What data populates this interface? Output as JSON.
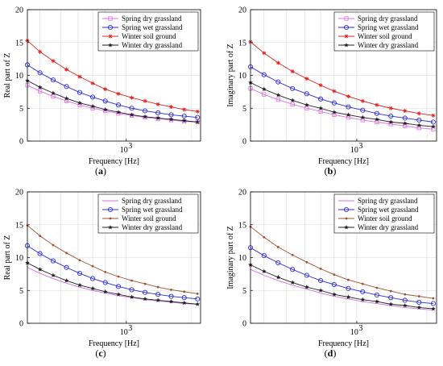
{
  "figure": {
    "captions": [
      "(a)",
      "(b)",
      "(c)",
      "(d)"
    ],
    "caption_letters": [
      "a",
      "b",
      "c",
      "d"
    ]
  },
  "chart_data": [
    {
      "type": "line",
      "panel": "(a)",
      "xlabel": "Frequency [Hz]",
      "ylabel": "Real part of Z",
      "xscale": "log",
      "xlim": [
        350,
        2200
      ],
      "ylim": [
        0,
        20
      ],
      "yticks": [
        0,
        5,
        10,
        15,
        20
      ],
      "xticks": [
        {
          "value": 1000,
          "label": "10",
          "exponent": "3"
        }
      ],
      "grid": true,
      "legend_position": "top-right",
      "x": [
        350,
        400,
        460,
        530,
        610,
        700,
        800,
        920,
        1060,
        1220,
        1400,
        1610,
        1850,
        2130
      ],
      "series": [
        {
          "name": "Spring dry grassland",
          "color": "#e070e0",
          "marker": "square",
          "values": [
            8.5,
            7.6,
            6.8,
            6.1,
            5.5,
            5.0,
            4.6,
            4.2,
            3.9,
            3.6,
            3.4,
            3.2,
            3.0,
            2.9
          ]
        },
        {
          "name": "Spring wet grassland",
          "color": "#2a2ae0",
          "marker": "circle",
          "values": [
            11.6,
            10.4,
            9.3,
            8.3,
            7.4,
            6.7,
            6.1,
            5.5,
            5.0,
            4.6,
            4.3,
            4.0,
            3.8,
            3.6
          ]
        },
        {
          "name": "Winter soil ground",
          "color": "#e02020",
          "marker": "asterisk",
          "values": [
            15.3,
            13.6,
            12.2,
            10.9,
            9.8,
            8.8,
            7.9,
            7.2,
            6.6,
            6.1,
            5.6,
            5.2,
            4.8,
            4.5
          ]
        },
        {
          "name": "Winter dry grassland",
          "color": "#202020",
          "marker": "star",
          "values": [
            9.2,
            8.2,
            7.3,
            6.5,
            5.8,
            5.3,
            4.8,
            4.4,
            4.0,
            3.7,
            3.5,
            3.3,
            3.1,
            2.9
          ]
        }
      ]
    },
    {
      "type": "line",
      "panel": "(b)",
      "xlabel": "Frequency [Hz]",
      "ylabel": "Imaginary part of Z",
      "xscale": "log",
      "xlim": [
        350,
        2200
      ],
      "ylim": [
        0,
        20
      ],
      "yticks": [
        0,
        5,
        10,
        15,
        20
      ],
      "xticks": [
        {
          "value": 1000,
          "label": "10",
          "exponent": "3"
        }
      ],
      "grid": true,
      "legend_position": "top-right",
      "x": [
        350,
        400,
        460,
        530,
        610,
        700,
        800,
        920,
        1060,
        1220,
        1400,
        1610,
        1850,
        2130
      ],
      "series": [
        {
          "name": "Spring dry grassland",
          "color": "#e070e0",
          "marker": "square",
          "values": [
            8.0,
            7.1,
            6.3,
            5.6,
            5.0,
            4.5,
            4.0,
            3.6,
            3.2,
            2.9,
            2.6,
            2.3,
            2.0,
            1.8
          ]
        },
        {
          "name": "Spring wet grassland",
          "color": "#2a2ae0",
          "marker": "circle",
          "values": [
            11.3,
            10.1,
            9.0,
            8.0,
            7.2,
            6.4,
            5.8,
            5.2,
            4.7,
            4.2,
            3.8,
            3.5,
            3.2,
            2.9
          ]
        },
        {
          "name": "Winter soil ground",
          "color": "#e02020",
          "marker": "asterisk",
          "values": [
            15.1,
            13.4,
            11.9,
            10.6,
            9.5,
            8.5,
            7.6,
            6.8,
            6.1,
            5.5,
            5.0,
            4.6,
            4.2,
            3.9
          ]
        },
        {
          "name": "Winter dry grassland",
          "color": "#202020",
          "marker": "star",
          "values": [
            8.9,
            7.9,
            7.0,
            6.2,
            5.5,
            5.0,
            4.4,
            4.0,
            3.6,
            3.3,
            2.9,
            2.7,
            2.4,
            2.2
          ]
        }
      ]
    },
    {
      "type": "line",
      "panel": "(c)",
      "xlabel": "Frequency [Hz]",
      "ylabel": "Real part of Z",
      "xscale": "log",
      "xlim": [
        350,
        2200
      ],
      "ylim": [
        0,
        20
      ],
      "yticks": [
        0,
        5,
        10,
        15,
        20
      ],
      "xticks": [
        {
          "value": 1000,
          "label": "10",
          "exponent": "3"
        }
      ],
      "grid": true,
      "legend_position": "top-right",
      "x": [
        350,
        400,
        460,
        530,
        610,
        700,
        800,
        920,
        1060,
        1220,
        1400,
        1610,
        1850,
        2130
      ],
      "series": [
        {
          "name": "Spring dry grassland",
          "color": "#d070e0",
          "marker": "none",
          "values": [
            8.5,
            7.6,
            6.8,
            6.1,
            5.5,
            5.0,
            4.6,
            4.2,
            3.9,
            3.6,
            3.4,
            3.2,
            3.0,
            2.9
          ]
        },
        {
          "name": "Spring wet grassland",
          "color": "#2a2ae0",
          "marker": "circle",
          "values": [
            11.8,
            10.6,
            9.5,
            8.5,
            7.6,
            6.8,
            6.2,
            5.6,
            5.1,
            4.7,
            4.4,
            4.1,
            3.9,
            3.7
          ]
        },
        {
          "name": "Winter soil ground",
          "color": "#a0522d",
          "marker": "dot",
          "values": [
            14.9,
            13.3,
            11.9,
            10.7,
            9.6,
            8.7,
            7.8,
            7.1,
            6.5,
            6.0,
            5.5,
            5.1,
            4.8,
            4.5
          ]
        },
        {
          "name": "Winter dry grassland",
          "color": "#202020",
          "marker": "star",
          "values": [
            9.2,
            8.2,
            7.3,
            6.5,
            5.8,
            5.3,
            4.8,
            4.4,
            4.0,
            3.7,
            3.5,
            3.3,
            3.1,
            2.9
          ]
        }
      ]
    },
    {
      "type": "line",
      "panel": "(d)",
      "xlabel": "Frequency [Hz]",
      "ylabel": "Imaginary part of Z",
      "xscale": "log",
      "xlim": [
        350,
        2200
      ],
      "ylim": [
        0,
        20
      ],
      "yticks": [
        0,
        5,
        10,
        15,
        20
      ],
      "xticks": [
        {
          "value": 1000,
          "label": "10",
          "exponent": "3"
        }
      ],
      "grid": true,
      "legend_position": "top-right",
      "x": [
        350,
        400,
        460,
        530,
        610,
        700,
        800,
        920,
        1060,
        1220,
        1400,
        1610,
        1850,
        2130
      ],
      "series": [
        {
          "name": "Spring dry grassland",
          "color": "#d070e0",
          "marker": "none",
          "values": [
            8.2,
            7.3,
            6.5,
            5.8,
            5.2,
            4.6,
            4.1,
            3.7,
            3.3,
            3.0,
            2.7,
            2.4,
            2.2,
            2.0
          ]
        },
        {
          "name": "Spring wet grassland",
          "color": "#2a2ae0",
          "marker": "circle",
          "values": [
            11.5,
            10.3,
            9.2,
            8.2,
            7.3,
            6.5,
            5.9,
            5.3,
            4.8,
            4.3,
            3.9,
            3.5,
            3.2,
            3.0
          ]
        },
        {
          "name": "Winter soil ground",
          "color": "#a0522d",
          "marker": "dot",
          "values": [
            14.7,
            13.1,
            11.6,
            10.4,
            9.3,
            8.3,
            7.4,
            6.6,
            6.0,
            5.4,
            4.9,
            4.4,
            4.1,
            3.8
          ]
        },
        {
          "name": "Winter dry grassland",
          "color": "#202020",
          "marker": "star",
          "values": [
            8.9,
            7.9,
            7.0,
            6.2,
            5.5,
            5.0,
            4.4,
            4.0,
            3.6,
            3.3,
            2.9,
            2.7,
            2.4,
            2.2
          ]
        }
      ]
    }
  ]
}
